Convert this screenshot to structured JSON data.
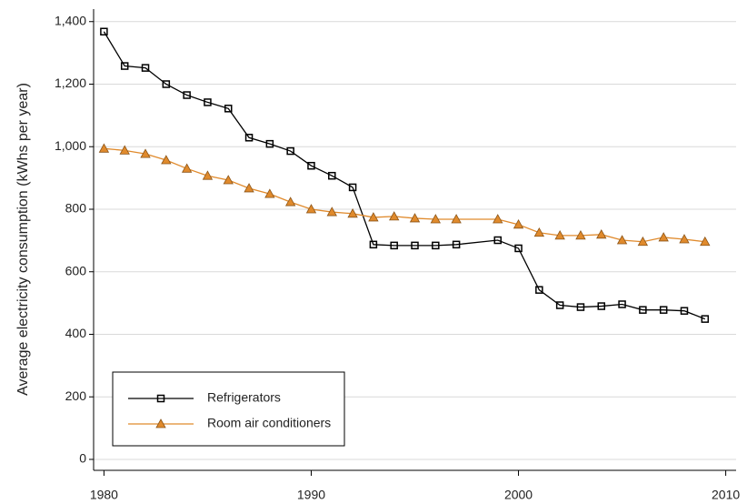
{
  "chart_data": {
    "type": "line",
    "y_label": "Average electricity consumption (kWhs per year)",
    "x": [
      1980,
      1981,
      1982,
      1983,
      1984,
      1985,
      1986,
      1987,
      1988,
      1989,
      1990,
      1991,
      1992,
      1993,
      1994,
      1995,
      1996,
      1997,
      1999,
      2000,
      2001,
      2002,
      2003,
      2004,
      2005,
      2006,
      2007,
      2008,
      2009
    ],
    "series": [
      {
        "name": "Refrigerators",
        "color": "#000000",
        "marker": "square",
        "values": [
          1368,
          1258,
          1252,
          1200,
          1165,
          1142,
          1122,
          1029,
          1009,
          986,
          939,
          907,
          870,
          687,
          684,
          684,
          684,
          687,
          701,
          675,
          542,
          493,
          487,
          490,
          496,
          478,
          478,
          475,
          449
        ]
      },
      {
        "name": "Room air conditioners",
        "color": "#e08a2c",
        "marker": "triangle",
        "values": [
          994,
          988,
          977,
          957,
          930,
          907,
          893,
          867,
          849,
          823,
          800,
          791,
          786,
          774,
          777,
          771,
          768,
          768,
          768,
          751,
          725,
          716,
          716,
          719,
          701,
          696,
          710,
          704,
          696
        ]
      }
    ],
    "xlim": [
      1979.5,
      2010.5
    ],
    "xticks": [
      1980,
      1990,
      2000,
      2010
    ],
    "ylim": [
      -35,
      1440
    ],
    "yticks": [
      0,
      200,
      400,
      600,
      800,
      {
        "value": 1000,
        "label": "1,000"
      },
      {
        "value": 1200,
        "label": "1,200"
      },
      {
        "value": 1400,
        "label": "1,400"
      }
    ],
    "grid": true
  }
}
